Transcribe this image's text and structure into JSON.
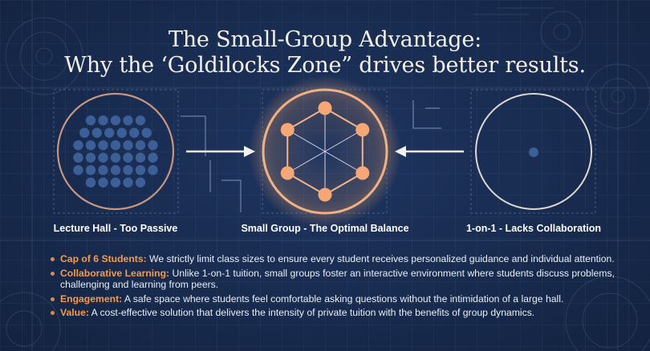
{
  "title": {
    "line1": "The Small-Group Advantage:",
    "line2": "Why the ‘Goldilocks Zone” drives better results."
  },
  "panels": [
    {
      "label": "Lecture Hall - Too Passive",
      "dot_count": 37
    },
    {
      "label": "Small Group - The Optimal Balance",
      "node_count": 6
    },
    {
      "label": "1-on-1 - Lacks Collaboration",
      "dot_count": 1
    }
  ],
  "points": [
    {
      "heading": "Cap of 6 Students:",
      "text": " We strictly limit class sizes to ensure every student receives personalized guidance and individual attention."
    },
    {
      "heading": "Collaborative Learning:",
      "text": " Unlike 1-on-1 tuition, small groups foster an interactive environment where students discuss problems, challenging and learning from peers."
    },
    {
      "heading": "Engagement:",
      "text": " A safe space where students feel comfortable asking questions without the intimidation of a large hall."
    },
    {
      "heading": "Value:",
      "text": " A cost-effective solution that delivers the intensity of private tuition with the benefits of group dynamics."
    }
  ],
  "colors": {
    "background": "#182b4f",
    "accent": "#f29b4f",
    "ring_orange": "#f0b184",
    "ring_muted": "#c79682",
    "dot_blue": "#3c5f97",
    "text": "#ffffff"
  }
}
